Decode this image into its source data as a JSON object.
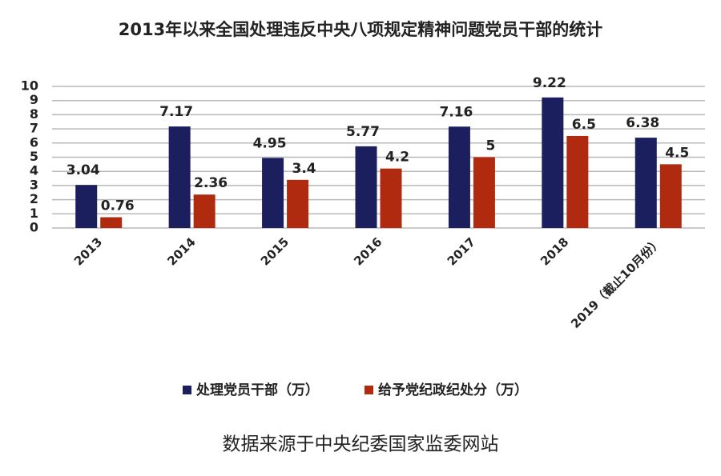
{
  "chart_data": {
    "type": "bar",
    "title": "2013年以来全国处理违反中央八项规定精神问题党员干部的统计",
    "categories": [
      "2013",
      "2014",
      "2015",
      "2016",
      "2017",
      "2018",
      "2019（截止10月份）"
    ],
    "series": [
      {
        "name": "处理党员干部（万）",
        "color": "#1b1f5e",
        "values": [
          3.04,
          7.17,
          4.95,
          5.77,
          7.16,
          9.22,
          6.38
        ]
      },
      {
        "name": "给予党纪政纪处分（万）",
        "color": "#b02a10",
        "values": [
          0.76,
          2.36,
          3.4,
          4.2,
          5,
          6.5,
          4.5
        ]
      }
    ],
    "ylim": [
      0,
      10
    ],
    "yticks": [
      0,
      1,
      2,
      3,
      4,
      5,
      6,
      7,
      8,
      9,
      10
    ],
    "grid": true,
    "source": "数据来源于中央纪委国家监委网站"
  }
}
